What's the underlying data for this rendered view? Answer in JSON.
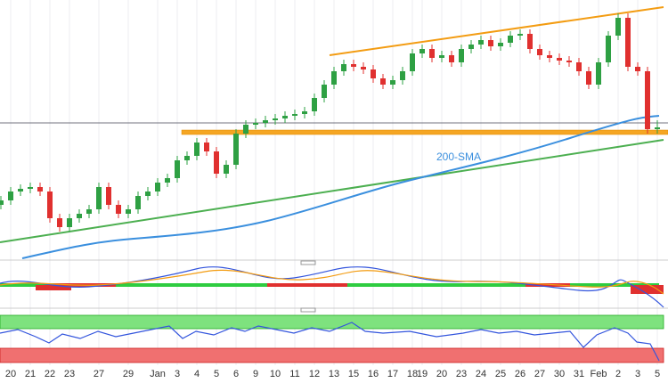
{
  "chart_data": {
    "type": "candlestick",
    "annotations": [
      "200-SMA"
    ],
    "categories": [
      null,
      "20",
      null,
      "21",
      null,
      "22",
      null,
      "23",
      null,
      null,
      "27",
      null,
      null,
      "29",
      null,
      null,
      "Jan",
      null,
      "3",
      null,
      "4",
      null,
      "5",
      null,
      "6",
      null,
      "9",
      null,
      "10",
      null,
      "11",
      null,
      "12",
      null,
      "13",
      null,
      "15",
      null,
      "16",
      null,
      "17",
      null,
      "18",
      "19",
      null,
      "20",
      null,
      "23",
      null,
      "24",
      null,
      "25",
      null,
      "26",
      null,
      "27",
      null,
      "30",
      null,
      "31",
      null,
      "Feb",
      null,
      "2",
      null,
      "3",
      null,
      "5"
    ],
    "open": [
      1.052,
      1.053,
      1.055,
      1.0556,
      1.056,
      1.055,
      1.049,
      1.047,
      1.049,
      1.05,
      1.051,
      1.056,
      1.052,
      1.05,
      1.051,
      1.054,
      1.055,
      1.057,
      1.058,
      1.062,
      1.063,
      1.066,
      1.064,
      1.059,
      1.061,
      1.068,
      1.07,
      1.0704,
      1.071,
      1.0714,
      1.072,
      1.0724,
      1.073,
      1.076,
      1.079,
      1.082,
      1.0836,
      1.083,
      1.0824,
      1.0804,
      1.079,
      1.08,
      1.082,
      1.086,
      1.087,
      1.085,
      1.0856,
      1.084,
      1.087,
      1.088,
      1.089,
      1.0876,
      1.0884,
      1.09,
      1.0904,
      1.087,
      1.0856,
      1.085,
      1.0844,
      1.084,
      1.082,
      1.079,
      1.084,
      1.09,
      1.094,
      1.083,
      1.082,
      1.069
    ],
    "high": [
      1.054,
      1.056,
      1.0566,
      1.057,
      1.057,
      1.056,
      1.05,
      1.05,
      1.051,
      1.052,
      1.057,
      1.057,
      1.053,
      1.052,
      1.055,
      1.056,
      1.058,
      1.059,
      1.063,
      1.064,
      1.067,
      1.067,
      1.065,
      1.062,
      1.069,
      1.071,
      1.0714,
      1.072,
      1.0724,
      1.073,
      1.0734,
      1.074,
      1.077,
      1.08,
      1.083,
      1.0846,
      1.0846,
      1.084,
      1.0834,
      1.0814,
      1.081,
      1.083,
      1.087,
      1.088,
      1.088,
      1.0866,
      1.0866,
      1.088,
      1.089,
      1.09,
      1.09,
      1.0894,
      1.091,
      1.0914,
      1.0914,
      1.088,
      1.0866,
      1.086,
      1.0854,
      1.085,
      1.083,
      1.085,
      1.091,
      1.095,
      1.095,
      1.084,
      1.083,
      1.071
    ],
    "low": [
      1.051,
      1.052,
      1.054,
      1.0546,
      1.054,
      1.048,
      1.046,
      1.046,
      1.048,
      1.049,
      1.05,
      1.051,
      1.049,
      1.049,
      1.05,
      1.053,
      1.054,
      1.056,
      1.057,
      1.061,
      1.062,
      1.063,
      1.058,
      1.058,
      1.06,
      1.067,
      1.069,
      1.0694,
      1.07,
      1.0704,
      1.071,
      1.0714,
      1.072,
      1.075,
      1.078,
      1.081,
      1.082,
      1.0814,
      1.0794,
      1.078,
      1.078,
      1.079,
      1.081,
      1.085,
      1.084,
      1.084,
      1.083,
      1.083,
      1.086,
      1.087,
      1.0866,
      1.0866,
      1.0874,
      1.089,
      1.086,
      1.0846,
      1.084,
      1.0834,
      1.083,
      1.081,
      1.078,
      1.078,
      1.083,
      1.089,
      1.082,
      1.081,
      1.068,
      1.068
    ],
    "close": [
      1.053,
      1.055,
      1.0556,
      1.056,
      1.055,
      1.049,
      1.047,
      1.049,
      1.05,
      1.051,
      1.056,
      1.052,
      1.05,
      1.051,
      1.054,
      1.055,
      1.057,
      1.058,
      1.062,
      1.063,
      1.066,
      1.064,
      1.059,
      1.061,
      1.068,
      1.07,
      1.0704,
      1.071,
      1.0714,
      1.072,
      1.0724,
      1.073,
      1.076,
      1.079,
      1.082,
      1.0836,
      1.083,
      1.0824,
      1.0804,
      1.079,
      1.08,
      1.082,
      1.086,
      1.087,
      1.085,
      1.0856,
      1.084,
      1.087,
      1.088,
      1.089,
      1.0876,
      1.0884,
      1.09,
      1.0904,
      1.087,
      1.0856,
      1.085,
      1.0844,
      1.084,
      1.082,
      1.079,
      1.084,
      1.09,
      1.094,
      1.083,
      1.082,
      1.069,
      1.0694
    ],
    "up_color": "#2ea043",
    "down_color": "#e0302f",
    "ylim": [
      1.04,
      1.098
    ],
    "grid": true
  }
}
